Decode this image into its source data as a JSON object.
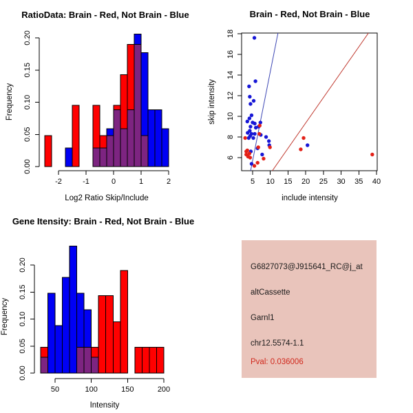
{
  "colors": {
    "hist_red": "#ff0000",
    "hist_blue": "#0000f5",
    "overlap_purple": "#7d2481",
    "scatter_red": "#e32017",
    "scatter_blue": "#1717d6",
    "line_red": "#c03a30",
    "line_blue": "#3c46b4",
    "axis_black": "#000000",
    "info_box_bg": "#e9c4bb",
    "info_text": "#1a1a1a",
    "pval_text": "#d0281c"
  },
  "panels": {
    "info_box": {
      "lines": [
        {
          "text": "G6827073@J915641_RC@j_at",
          "color": "black"
        },
        {
          "text": "altCassette",
          "color": "black"
        },
        {
          "text": "Garnl1",
          "color": "black"
        },
        {
          "text": "chr12.5574-1.1",
          "color": "black"
        },
        {
          "text": "Pval: 0.036006",
          "color": "red"
        }
      ]
    }
  },
  "chart_data": [
    {
      "type": "bar",
      "subtype": "overlaid-histogram",
      "title": "RatioData: Brain - Red, Not Brain - Blue",
      "xlabel": "Log2 Ratio Skip/Include",
      "ylabel": "Frequency",
      "bin_width": 0.25,
      "xticks": [
        -2,
        -1,
        0,
        1,
        2
      ],
      "yticks": [
        0,
        0.05,
        0.1,
        0.15,
        0.2
      ],
      "xlim": [
        -2.65,
        2.1
      ],
      "ylim": [
        0,
        0.21
      ],
      "grid": false,
      "legend": "in title (Brain red, Not Brain blue)",
      "series": [
        {
          "name": "Brain (red)",
          "color": "red",
          "bins": [
            [
              -2.5,
              0.048
            ],
            [
              -1.5,
              0.095
            ],
            [
              -0.75,
              0.095
            ],
            [
              -0.5,
              0.048
            ],
            [
              -0.25,
              0.048
            ],
            [
              0,
              0.095
            ],
            [
              0.25,
              0.143
            ],
            [
              0.5,
              0.19
            ],
            [
              0.75,
              0.19
            ],
            [
              1,
              0.048
            ]
          ]
        },
        {
          "name": "Not Brain (blue)",
          "color": "blue",
          "bins": [
            [
              -1.75,
              0.029
            ],
            [
              -0.75,
              0.029
            ],
            [
              -0.5,
              0.029
            ],
            [
              -0.25,
              0.059
            ],
            [
              0,
              0.088
            ],
            [
              0.25,
              0.059
            ],
            [
              0.5,
              0.088
            ],
            [
              0.75,
              0.206
            ],
            [
              1,
              0.177
            ],
            [
              1.25,
              0.088
            ],
            [
              1.5,
              0.088
            ],
            [
              1.75,
              0.059
            ]
          ]
        }
      ]
    },
    {
      "type": "scatter",
      "title": "Brain - Red, Not Brain - Blue",
      "xlabel": "include intensity",
      "ylabel": "skip intensity",
      "xticks": [
        5,
        10,
        15,
        20,
        25,
        30,
        35,
        40
      ],
      "yticks": [
        6,
        8,
        10,
        12,
        14,
        16,
        18
      ],
      "xlim": [
        2.5,
        40.5
      ],
      "ylim": [
        4.5,
        18.3
      ],
      "grid": false,
      "series": [
        {
          "name": "Not Brain (blue)",
          "color": "blue",
          "points": [
            [
              5.5,
              17.6
            ],
            [
              5.8,
              13.4
            ],
            [
              4.0,
              12.9
            ],
            [
              4.2,
              11.9
            ],
            [
              5.3,
              11.5
            ],
            [
              4.4,
              11.2
            ],
            [
              4.7,
              10.1
            ],
            [
              4.1,
              9.8
            ],
            [
              3.5,
              9.5
            ],
            [
              5.0,
              9.4
            ],
            [
              7.2,
              9.4
            ],
            [
              5.6,
              9.3
            ],
            [
              4.4,
              9.0
            ],
            [
              6.7,
              9.0
            ],
            [
              5.9,
              8.9
            ],
            [
              4.2,
              8.6
            ],
            [
              3.6,
              8.4
            ],
            [
              4.7,
              8.3
            ],
            [
              5.6,
              8.3
            ],
            [
              4.3,
              8.1
            ],
            [
              3.9,
              7.9
            ],
            [
              5.2,
              7.9
            ],
            [
              7.3,
              8.2
            ],
            [
              8.8,
              8.0
            ],
            [
              9.6,
              7.6
            ],
            [
              9.7,
              7.2
            ],
            [
              6.4,
              6.9
            ],
            [
              4.5,
              6.6
            ],
            [
              7.7,
              6.3
            ],
            [
              4.7,
              5.4
            ],
            [
              20.5,
              7.2
            ]
          ]
        },
        {
          "name": "Brain (red)",
          "color": "red",
          "points": [
            [
              7.0,
              9.1
            ],
            [
              6.9,
              8.3
            ],
            [
              2.9,
              7.9
            ],
            [
              6.6,
              7.0
            ],
            [
              3.5,
              6.7
            ],
            [
              3.2,
              6.6
            ],
            [
              4.1,
              6.4
            ],
            [
              3.2,
              6.3
            ],
            [
              3.7,
              6.1
            ],
            [
              4.3,
              6.0
            ],
            [
              8.1,
              5.9
            ],
            [
              6.4,
              5.5
            ],
            [
              5.5,
              5.2
            ],
            [
              19.4,
              7.9
            ],
            [
              18.6,
              6.8
            ],
            [
              9.9,
              7.0
            ],
            [
              38.8,
              6.3
            ]
          ]
        }
      ],
      "lines": [
        {
          "name": "blue reference line",
          "color": "blue",
          "from": [
            4.3,
            4.5
          ],
          "to": [
            12.3,
            18.3
          ]
        },
        {
          "name": "red reference line",
          "color": "red",
          "from": [
            10.1,
            4.5
          ],
          "to": [
            38.2,
            18.3
          ]
        }
      ]
    },
    {
      "type": "bar",
      "subtype": "overlaid-histogram",
      "title": "Gene Itensity: Brain - Red, Not Brain - Blue",
      "xlabel": "Intensity",
      "ylabel": "Frequency",
      "bin_width": 10,
      "xticks": [
        50,
        100,
        150,
        200
      ],
      "yticks": [
        0,
        0.05,
        0.1,
        0.15,
        0.2
      ],
      "xlim": [
        25,
        210
      ],
      "ylim": [
        0,
        0.24
      ],
      "grid": false,
      "series": [
        {
          "name": "Brain (red)",
          "color": "red",
          "bins": [
            [
              30,
              0.048
            ],
            [
              80,
              0.048
            ],
            [
              90,
              0.048
            ],
            [
              100,
              0.048
            ],
            [
              110,
              0.143
            ],
            [
              120,
              0.143
            ],
            [
              130,
              0.095
            ],
            [
              140,
              0.19
            ],
            [
              160,
              0.048
            ],
            [
              170,
              0.048
            ],
            [
              180,
              0.048
            ],
            [
              190,
              0.048
            ]
          ]
        },
        {
          "name": "Not Brain (blue)",
          "color": "blue",
          "bins": [
            [
              30,
              0.029
            ],
            [
              40,
              0.148
            ],
            [
              50,
              0.088
            ],
            [
              60,
              0.177
            ],
            [
              70,
              0.235
            ],
            [
              80,
              0.148
            ],
            [
              90,
              0.117
            ],
            [
              100,
              0.029
            ]
          ]
        }
      ]
    }
  ]
}
